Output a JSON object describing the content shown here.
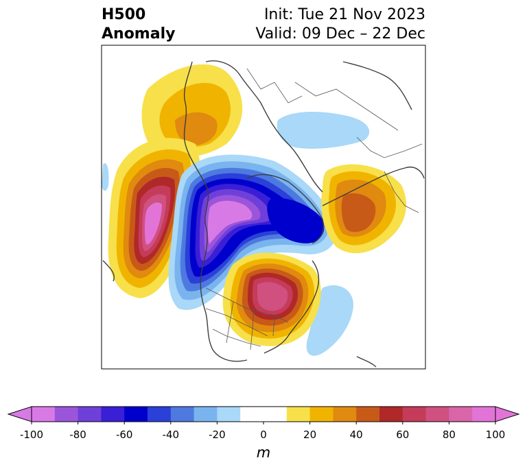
{
  "title": {
    "left_line1": "H500",
    "left_line2": "Anomaly",
    "right_line1": "Init: Tue 21 Nov 2023",
    "right_line2": "Valid: 09 Dec – 22 Dec"
  },
  "colorbar": {
    "unit": "m",
    "ticks": [
      "-100",
      "-80",
      "-60",
      "-40",
      "-20",
      "0",
      "20",
      "40",
      "60",
      "80",
      "100"
    ],
    "colors": [
      "#d87ae6",
      "#9b55db",
      "#6f40d9",
      "#3a1fd6",
      "#0000cc",
      "#2a40d8",
      "#4e7ae0",
      "#7ab4ee",
      "#a9d8f8",
      "#ffffff",
      "#ffffff",
      "#f7e04a",
      "#f0b400",
      "#e08a10",
      "#c85a18",
      "#b02828",
      "#c43c5a",
      "#d05080",
      "#d866a8",
      "#e274d8"
    ],
    "under_color": "#d87ae6",
    "over_color": "#e274d8"
  }
}
